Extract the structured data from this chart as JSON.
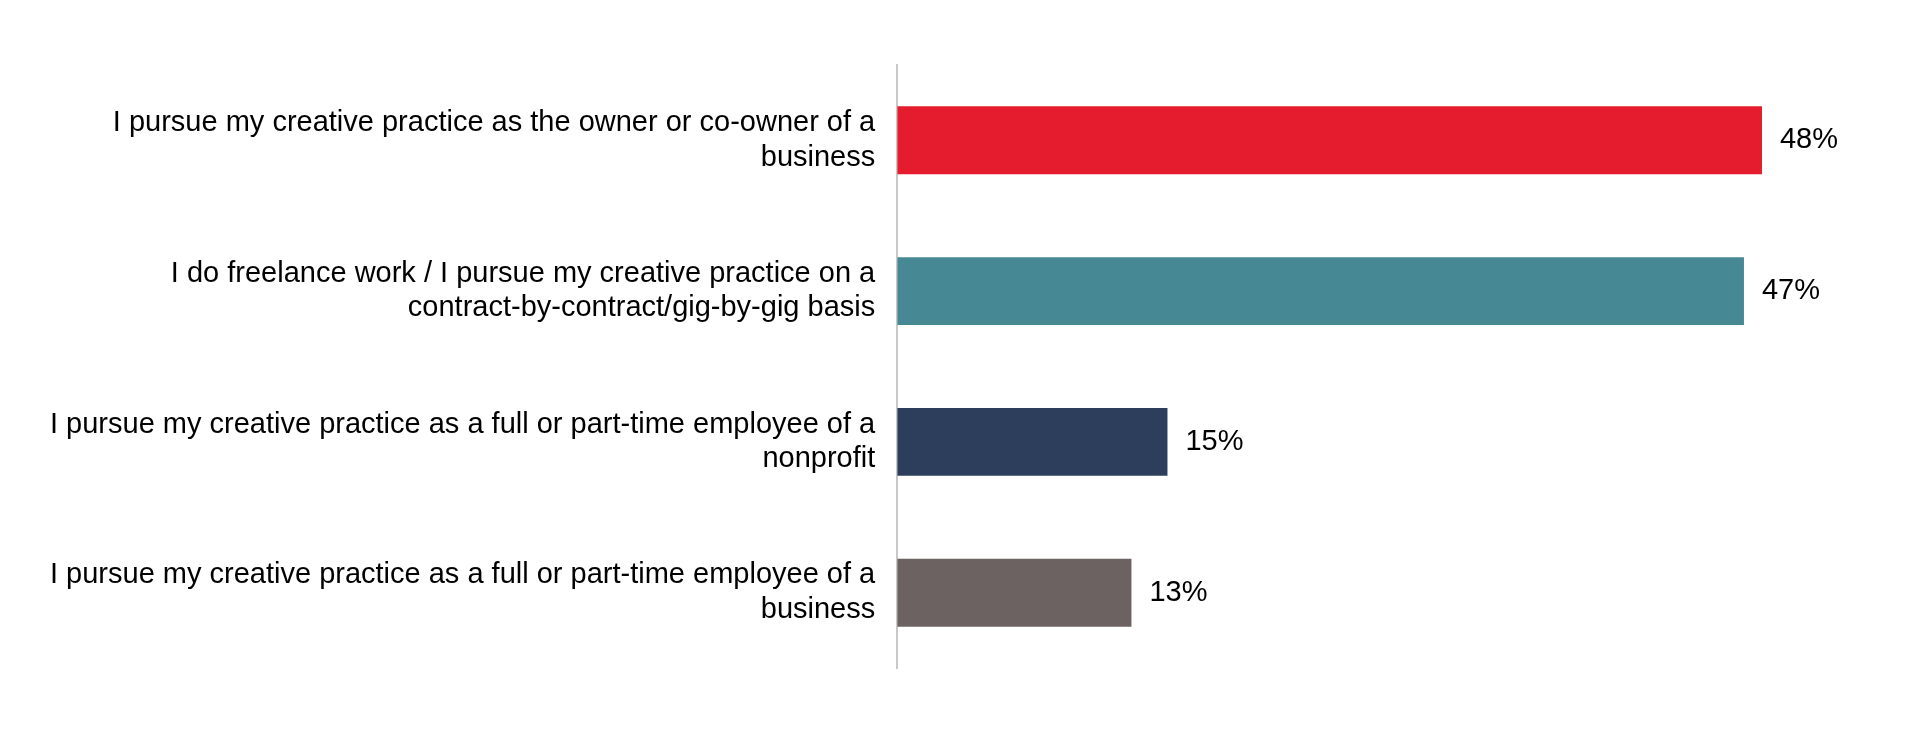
{
  "chart_data": {
    "type": "bar",
    "orientation": "horizontal",
    "categories": [
      "I pursue my creative practice as the owner or co-owner of a business",
      "I do freelance work / I pursue my creative practice on a contract-by-contract/gig-by-gig basis",
      "I pursue my creative practice as a full or part-time employee of a nonprofit",
      "I pursue my creative practice as a full or part-time employee of a business"
    ],
    "values": [
      48,
      47,
      15,
      13
    ],
    "colors": [
      "#e41c2d",
      "#468893",
      "#2c3e5c",
      "#6b6261"
    ],
    "value_labels": [
      "48%",
      "47%",
      "15%",
      "13%"
    ],
    "grid": false,
    "legend": false
  }
}
